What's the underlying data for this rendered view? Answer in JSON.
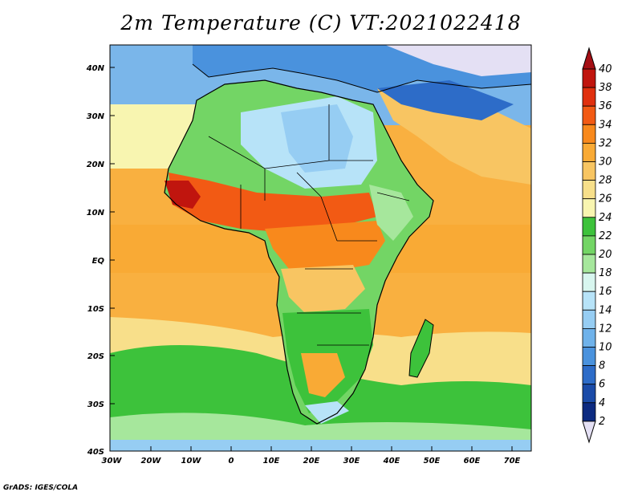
{
  "title": "2m Temperature (C) VT:2021022418",
  "credit": "GrADS: IGES/COLA",
  "lat_ticks": [
    "40N",
    "30N",
    "20N",
    "10N",
    "EQ",
    "10S",
    "20S",
    "30S",
    "40S"
  ],
  "lon_ticks": [
    "30W",
    "20W",
    "10W",
    "0",
    "10E",
    "20E",
    "30E",
    "40E",
    "50E",
    "60E",
    "70E"
  ],
  "colorbar": {
    "labels": [
      "40",
      "38",
      "36",
      "34",
      "32",
      "30",
      "28",
      "26",
      "24",
      "22",
      "20",
      "18",
      "16",
      "14",
      "12",
      "10",
      "8",
      "6",
      "4",
      "2"
    ],
    "colors": [
      "#a50f15",
      "#c0150e",
      "#e0300e",
      "#f25a14",
      "#f8891c",
      "#f9aa35",
      "#f8c562",
      "#f7df8a",
      "#f8f5b0",
      "#3dc23b",
      "#73d565",
      "#a6e79c",
      "#d8f6ef",
      "#b7e3f8",
      "#96cdf3",
      "#6fb2ea",
      "#4a92dd",
      "#2d6cc8",
      "#1a4ba8",
      "#0c2a80",
      "#e4e0f4"
    ],
    "top_arrow_color": "#a50f15",
    "bottom_arrow_color": "#e4e0f4"
  }
}
